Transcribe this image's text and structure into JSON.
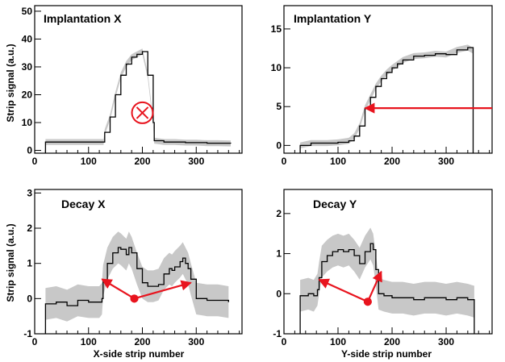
{
  "chart_data": [
    {
      "id": "implantation-x",
      "type": "line",
      "title": "Implantation X",
      "ylabel": "Strip signal (a.u.)",
      "xlabel": "",
      "xlim": [
        0,
        385
      ],
      "ylim": [
        -1,
        52
      ],
      "xticks": [
        0,
        100,
        200,
        300
      ],
      "yticks": [
        0,
        10,
        20,
        30,
        40,
        50
      ],
      "band": "gray uncertainty band",
      "series": [
        {
          "x": [
            20,
            60,
            100,
            128,
            130,
            140,
            150,
            160,
            170,
            180,
            190,
            200,
            210,
            220,
            222,
            240,
            260,
            280,
            300,
            320,
            340,
            364
          ],
          "y": [
            3,
            3,
            3,
            3,
            6.5,
            12,
            20,
            27,
            31,
            33.5,
            34.5,
            35.5,
            27,
            10,
            3.5,
            3,
            3,
            2.8,
            2.8,
            2.6,
            2.6,
            2.5
          ]
        }
      ],
      "annotations": [
        {
          "type": "circled-cross marker",
          "x": 200,
          "y": 13.5,
          "color": "#e8141e"
        }
      ]
    },
    {
      "id": "implantation-y",
      "type": "line",
      "title": "Implantation Y",
      "ylabel": "",
      "xlabel": "",
      "xlim": [
        0,
        385
      ],
      "ylim": [
        -1,
        18
      ],
      "xticks": [
        0,
        100,
        200,
        300
      ],
      "yticks": [
        0,
        5,
        10,
        15
      ],
      "band": "gray uncertainty band",
      "series": [
        {
          "x": [
            30,
            50,
            80,
            100,
            120,
            130,
            140,
            150,
            160,
            170,
            180,
            190,
            200,
            210,
            220,
            240,
            260,
            280,
            300,
            320,
            340,
            350,
            350
          ],
          "y": [
            0,
            0.3,
            0.3,
            0.4,
            0.6,
            1.2,
            2.5,
            4.8,
            6.2,
            7.6,
            8.6,
            9.4,
            10,
            10.5,
            11,
            11.5,
            11.6,
            11.8,
            11.7,
            12.3,
            12.6,
            12.2,
            -1
          ]
        }
      ],
      "annotations": [
        {
          "type": "arrow",
          "from": [
            385,
            4.8
          ],
          "to": [
            150,
            4.8
          ],
          "color": "#e8141e"
        }
      ]
    },
    {
      "id": "decay-x",
      "type": "line",
      "title": "Decay X",
      "ylabel": "Strip signal (a.u.)",
      "xlabel": "X-side strip number",
      "xlim": [
        0,
        385
      ],
      "ylim": [
        -1,
        3.1
      ],
      "xticks": [
        0,
        100,
        200,
        300
      ],
      "yticks": [
        -1,
        0,
        1,
        2,
        3
      ],
      "band": "gray uncertainty band",
      "series": [
        {
          "x": [
            20,
            40,
            60,
            80,
            100,
            120,
            125,
            127,
            135,
            145,
            155,
            160,
            170,
            175,
            180,
            190,
            200,
            210,
            220,
            230,
            240,
            250,
            255,
            260,
            270,
            275,
            280,
            285,
            290,
            300,
            320,
            340,
            360
          ],
          "y": [
            -0.15,
            -0.1,
            -0.2,
            -0.05,
            -0.1,
            -0.1,
            0,
            0.5,
            1.0,
            1.3,
            1.45,
            1.4,
            1.25,
            1.45,
            1.3,
            0.85,
            0.45,
            0.35,
            0.35,
            0.4,
            0.7,
            0.85,
            0.8,
            0.9,
            1.05,
            1.15,
            1.0,
            0.85,
            0.55,
            0.0,
            -0.05,
            -0.05,
            -0.1
          ]
        }
      ],
      "annotations": [
        {
          "type": "arrow",
          "from": [
            185,
            0
          ],
          "to": [
            125,
            0.55
          ],
          "color": "#e8141e"
        },
        {
          "type": "arrow",
          "from": [
            185,
            0
          ],
          "to": [
            290,
            0.45
          ],
          "color": "#e8141e"
        }
      ]
    },
    {
      "id": "decay-y",
      "type": "line",
      "title": "Decay Y",
      "ylabel": "",
      "xlabel": "Y-side strip number",
      "xlim": [
        0,
        385
      ],
      "ylim": [
        -1,
        2.6
      ],
      "xticks": [
        0,
        100,
        200,
        300
      ],
      "yticks": [
        -1,
        0,
        1,
        2
      ],
      "band": "gray uncertainty band",
      "series": [
        {
          "x": [
            30,
            45,
            55,
            62,
            65,
            70,
            80,
            90,
            100,
            110,
            120,
            130,
            140,
            150,
            160,
            165,
            170,
            175,
            185,
            200,
            220,
            240,
            260,
            280,
            300,
            320,
            340,
            352,
            352
          ],
          "y": [
            -0.05,
            0,
            -0.05,
            0.1,
            0.4,
            0.8,
            0.95,
            1.05,
            1.1,
            1.05,
            1.1,
            0.95,
            0.75,
            1.05,
            1.25,
            1.1,
            0.6,
            0.0,
            -0.05,
            -0.1,
            -0.1,
            -0.15,
            -0.1,
            -0.1,
            -0.15,
            -0.1,
            -0.15,
            -0.2,
            -1
          ]
        }
      ],
      "annotations": [
        {
          "type": "arrow",
          "from": [
            155,
            -0.2
          ],
          "to": [
            65,
            0.35
          ],
          "color": "#e8141e"
        },
        {
          "type": "arrow",
          "from": [
            155,
            -0.2
          ],
          "to": [
            180,
            0.55
          ],
          "color": "#e8141e"
        }
      ]
    }
  ]
}
